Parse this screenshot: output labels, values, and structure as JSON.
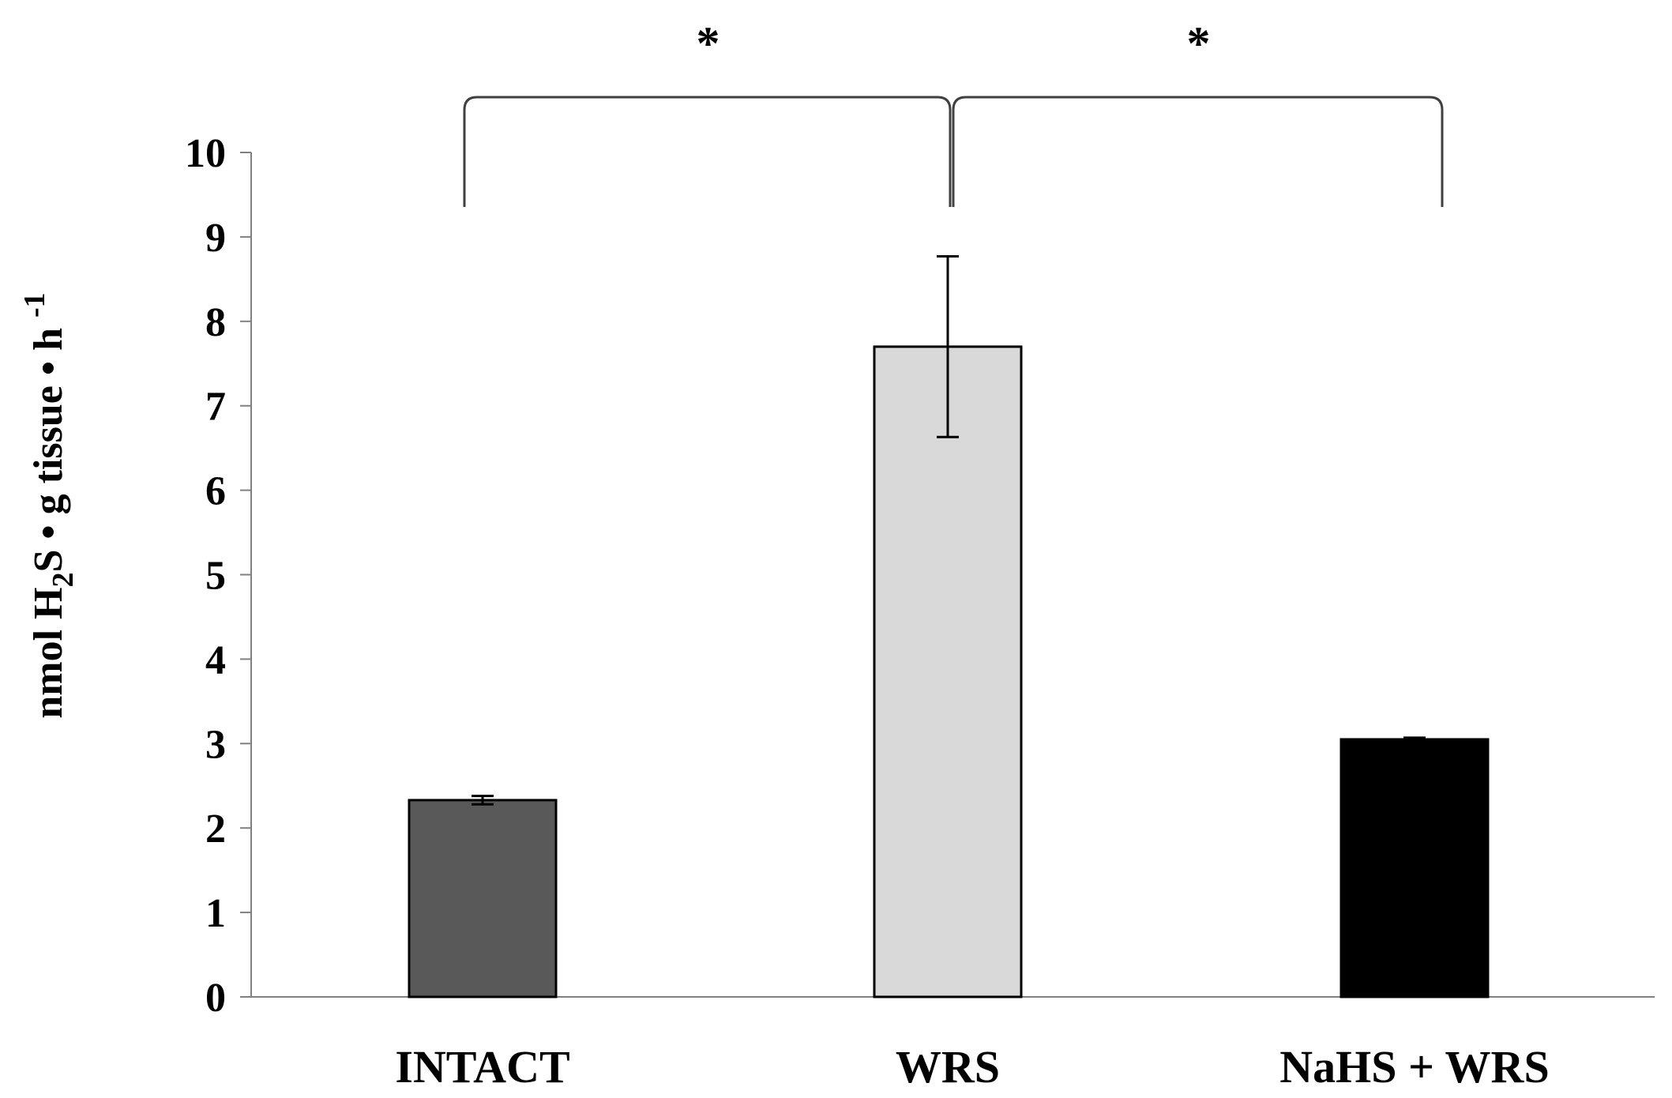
{
  "chart_data": {
    "type": "bar",
    "categories": [
      "INTACT",
      "WRS",
      "NaHS + WRS"
    ],
    "values": [
      2.33,
      7.7,
      3.05
    ],
    "errors": [
      0.05,
      1.07,
      0.02
    ],
    "colors": [
      "#595959",
      "#d9d9d9",
      "#000000"
    ],
    "ylim": [
      0,
      10
    ],
    "yticks": [
      0,
      1,
      2,
      3,
      4,
      5,
      6,
      7,
      8,
      9,
      10
    ],
    "ylabel_parts": {
      "before_sub": "nmol H",
      "sub": "2",
      "after_sub": "S • g  tissue • h ",
      "sup": "-1"
    },
    "significance": [
      {
        "from": "INTACT",
        "to": "WRS",
        "label": "*"
      },
      {
        "from": "WRS",
        "to": "NaHS + WRS",
        "label": "*"
      }
    ],
    "grid": false,
    "legend": "none"
  }
}
